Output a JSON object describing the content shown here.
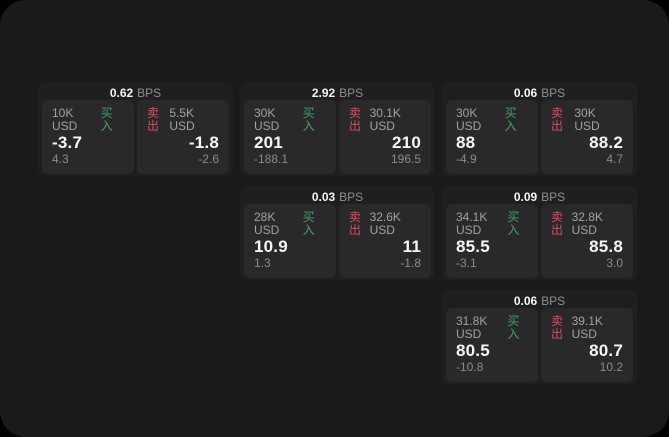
{
  "labels": {
    "buy": "买入",
    "sell": "卖出",
    "bps": "BPS"
  },
  "colors": {
    "background": "#000000",
    "panel": "#1a1a1c",
    "card": "#1f1f21",
    "sub_panel": "#29292b",
    "buy": "#44a066",
    "sell": "#cd5265",
    "text_primary": "#f7f7f7",
    "text_secondary": "#a1a1a6",
    "text_muted": "#8a8a8f"
  },
  "cards": [
    {
      "bps": "0.62",
      "buy": {
        "amount": "10K USD",
        "value": "-3.7",
        "delta": "4.3"
      },
      "sell": {
        "amount": "5.5K USD",
        "value": "-1.8",
        "delta": "-2.6"
      }
    },
    {
      "bps": "2.92",
      "buy": {
        "amount": "30K USD",
        "value": "201",
        "delta": "-188.1"
      },
      "sell": {
        "amount": "30.1K USD",
        "value": "210",
        "delta": "196.5"
      }
    },
    {
      "bps": "0.06",
      "buy": {
        "amount": "30K USD",
        "value": "88",
        "delta": "-4.9"
      },
      "sell": {
        "amount": "30K USD",
        "value": "88.2",
        "delta": "4.7"
      }
    },
    {
      "bps": "0.03",
      "buy": {
        "amount": "28K USD",
        "value": "10.9",
        "delta": "1.3"
      },
      "sell": {
        "amount": "32.6K USD",
        "value": "11",
        "delta": "-1.8"
      }
    },
    {
      "bps": "0.09",
      "buy": {
        "amount": "34.1K USD",
        "value": "85.5",
        "delta": "-3.1"
      },
      "sell": {
        "amount": "32.8K USD",
        "value": "85.8",
        "delta": "3.0"
      }
    },
    {
      "bps": "0.06",
      "buy": {
        "amount": "31.8K USD",
        "value": "80.5",
        "delta": "-10.8"
      },
      "sell": {
        "amount": "39.1K USD",
        "value": "80.7",
        "delta": "10.2"
      }
    }
  ]
}
